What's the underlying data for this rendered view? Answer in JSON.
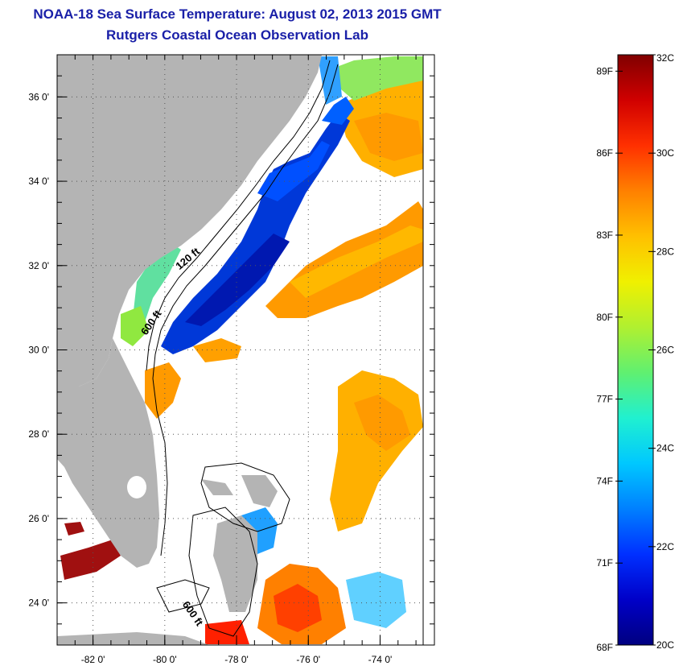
{
  "title": "NOAA-18 Sea Surface Temperature:  August 02, 2013 2015 GMT",
  "subtitle": "Rutgers Coastal Ocean Observation Lab",
  "map": {
    "lon_range": [
      -83.0,
      -72.8
    ],
    "lat_range": [
      23.0,
      37.0
    ],
    "lon_ticks": [
      {
        "value": -82,
        "label": "-82 0'"
      },
      {
        "value": -80,
        "label": "-80 0'"
      },
      {
        "value": -78,
        "label": "-78 0'"
      },
      {
        "value": -76,
        "label": "-76 0'"
      },
      {
        "value": -74,
        "label": "-74 0'"
      }
    ],
    "lat_ticks": [
      {
        "value": 36,
        "label": "36 0'"
      },
      {
        "value": 34,
        "label": "34 0'"
      },
      {
        "value": 32,
        "label": "32 0'"
      },
      {
        "value": 30,
        "label": "30 0'"
      },
      {
        "value": 28,
        "label": "28 0'"
      },
      {
        "value": 26,
        "label": "26 0'"
      },
      {
        "value": 24,
        "label": "24 0'"
      }
    ],
    "contour_labels": [
      {
        "text": "120 ft",
        "lon": -79.3,
        "lat": 32.1,
        "angle": -40
      },
      {
        "text": "600 ft",
        "lon": -80.3,
        "lat": 30.6,
        "angle": -55
      },
      {
        "text": "600 ft",
        "lon": -79.3,
        "lat": 23.7,
        "angle": 55
      }
    ],
    "land_color": "#b4b4b4"
  },
  "colorbar": {
    "min_c": 20,
    "max_c": 32,
    "celsius_ticks": [
      {
        "value": 32,
        "label": "32C"
      },
      {
        "value": 30,
        "label": "30C"
      },
      {
        "value": 28,
        "label": "28C"
      },
      {
        "value": 26,
        "label": "26C"
      },
      {
        "value": 24,
        "label": "24C"
      },
      {
        "value": 22,
        "label": "22C"
      },
      {
        "value": 20,
        "label": "20C"
      }
    ],
    "fahrenheit_ticks": [
      {
        "value": 89,
        "label": "89F"
      },
      {
        "value": 86,
        "label": "86F"
      },
      {
        "value": 83,
        "label": "83F"
      },
      {
        "value": 80,
        "label": "80F"
      },
      {
        "value": 77,
        "label": "77F"
      },
      {
        "value": 74,
        "label": "74F"
      },
      {
        "value": 71,
        "label": "71F"
      },
      {
        "value": 68,
        "label": "68F"
      }
    ],
    "colors": [
      "#000080",
      "#0000c8",
      "#0030ff",
      "#0080ff",
      "#00c8ff",
      "#20f0d0",
      "#60f070",
      "#b0f030",
      "#f0f000",
      "#ffc000",
      "#ff8000",
      "#ff3000",
      "#d00000",
      "#800000"
    ]
  }
}
